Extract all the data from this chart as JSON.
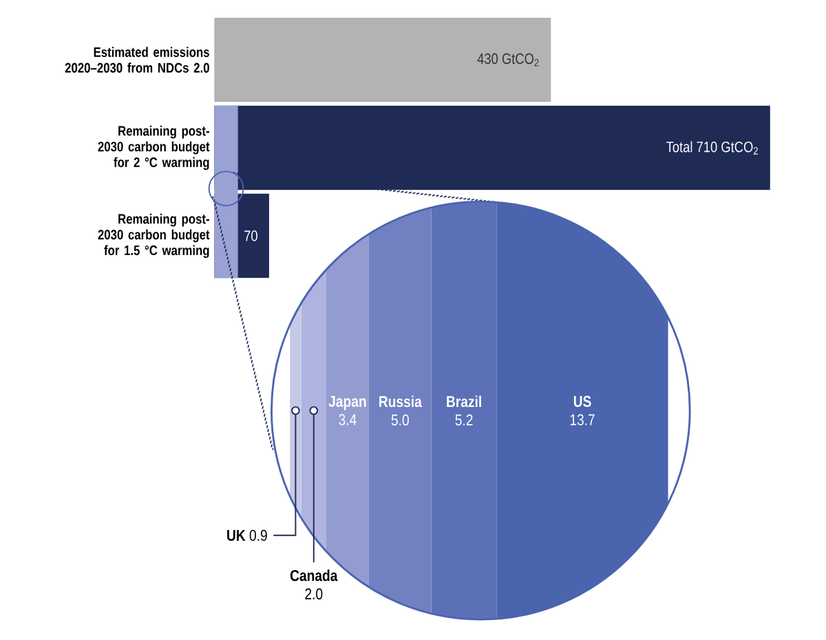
{
  "chart_data": [
    {
      "type": "bar",
      "orientation": "horizontal",
      "tick_labels": "y",
      "categories": [
        "Estimated emissions 2020–2030 from NDCs 2.0",
        "Remaining post-2030 carbon budget for 2 °C warming",
        "Remaining post-2030 carbon budget for 1.5 °C warming"
      ],
      "values": [
        430,
        710,
        70
      ],
      "colors": [
        "#b3b3b3",
        "#1f2a55",
        "#1f2a55"
      ],
      "value_labels": [
        "430 GtCO$_{2}$",
        "Total 710 GtCO$_{2}$",
        "70"
      ],
      "bands": [
        {
          "axis": "x",
          "from": 0,
          "to": 30.2,
          "color": "#9aa2d4"
        }
      ]
    },
    {
      "type": "bar",
      "orientation": "horizontal",
      "stacked": true,
      "tick_labels": false,
      "categories": [
        null
      ],
      "series": [
        {
          "name": "UK",
          "color": "#c5c9e8",
          "values": [
            0.9
          ],
          "value_labels": [
            "0.9"
          ]
        },
        {
          "name": "Canada",
          "color": "#aeb4df",
          "values": [
            2.0
          ],
          "value_labels": [
            "2.0"
          ]
        },
        {
          "name": "Japan",
          "color": "#939cd1",
          "values": [
            3.4
          ],
          "value_labels": [
            "3.4"
          ]
        },
        {
          "name": "Russia",
          "color": "#7180c0",
          "values": [
            5.0
          ],
          "value_labels": [
            "5.0"
          ]
        },
        {
          "name": "Brazil",
          "color": "#5b70b6",
          "values": [
            5.2
          ],
          "value_labels": [
            "5.2"
          ]
        },
        {
          "name": "US",
          "color": "#4a64ae",
          "values": [
            13.7
          ],
          "value_labels": [
            "13.7"
          ]
        }
      ]
    }
  ]
}
